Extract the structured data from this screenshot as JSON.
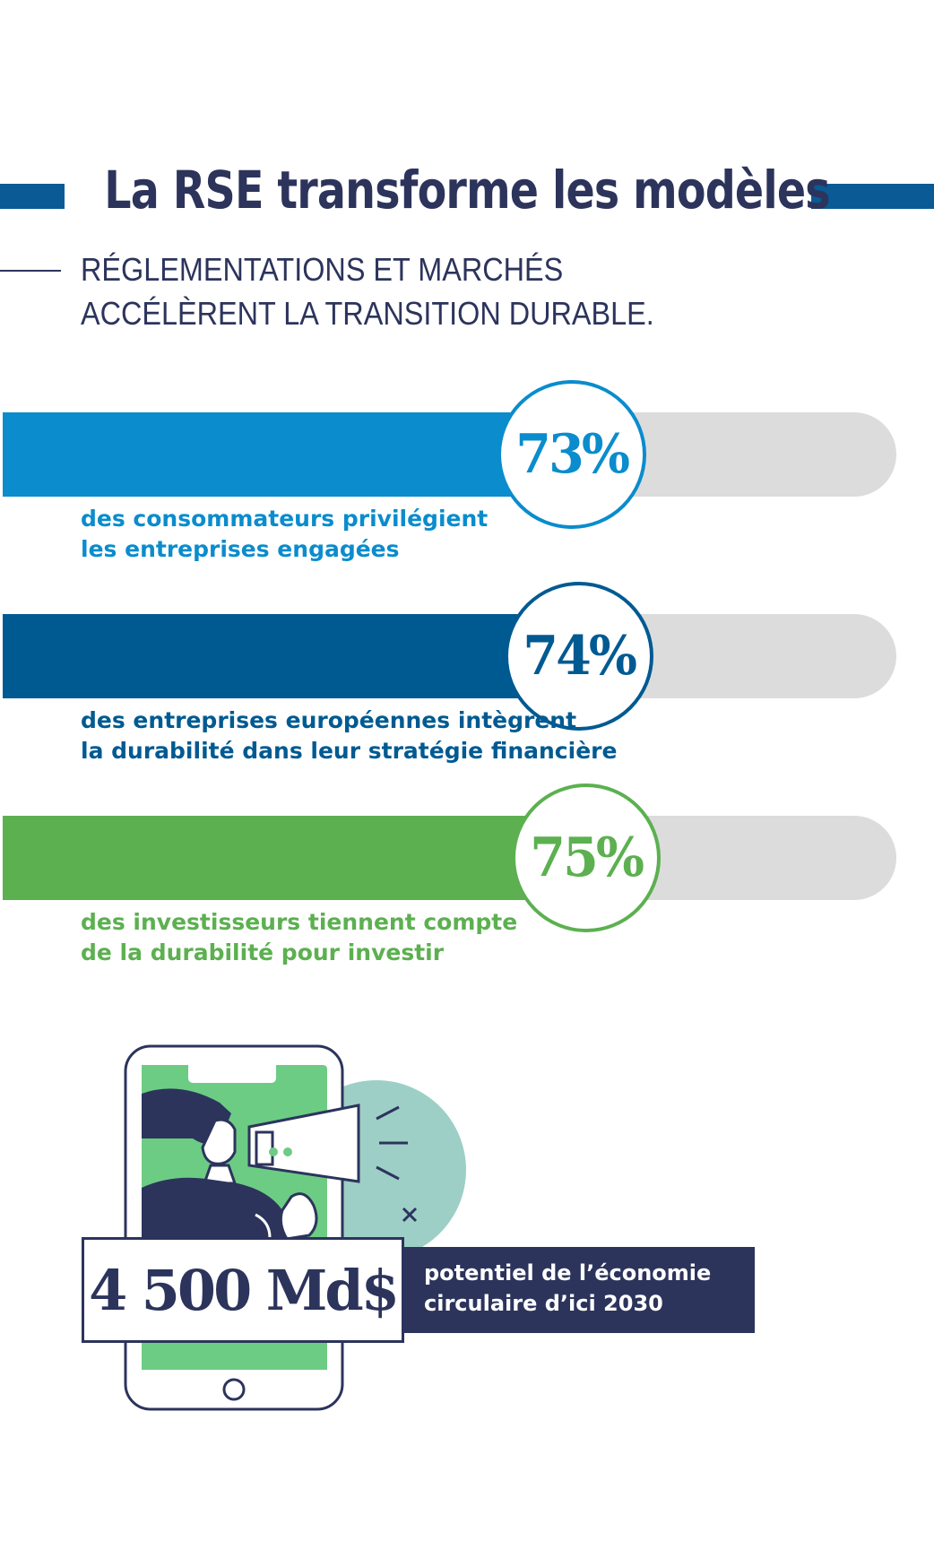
{
  "header": {
    "title": "La RSE transforme les modèles",
    "subtitle_line1": "RÉGLEMENTATIONS ET MARCHÉS",
    "subtitle_line2": "ACCÉLÈRENT LA TRANSITION DURABLE."
  },
  "colors": {
    "navy": "#2c345c",
    "light_blue": "#0a8ccd",
    "dark_blue": "#005a92",
    "green": "#5cb050",
    "track": "#dcdcdc",
    "phone_screen": "#6ccc84",
    "blob": "#9dcfc7"
  },
  "chart_data": {
    "type": "bar",
    "orientation": "horizontal",
    "unit": "%",
    "xlim": [
      0,
      100
    ],
    "series": [
      {
        "label": "73%",
        "value": 73,
        "desc_line1": "des consommateurs privilégient",
        "desc_line2": "les entreprises engagées",
        "color": "#0a8ccd"
      },
      {
        "label": "74%",
        "value": 74,
        "desc_line1": "des entreprises européennes intègrent",
        "desc_line2": "la durabilité dans leur stratégie financière",
        "color": "#005a92"
      },
      {
        "label": "75%",
        "value": 75,
        "desc_line1": "des investisseurs tiennent compte",
        "desc_line2": "de la durabilité pour investir",
        "color": "#5cb050"
      }
    ]
  },
  "highlight": {
    "value": "4 500 Md$",
    "text_line1": "potentiel de l’économie",
    "text_line2": "circulaire d’ici 2030"
  },
  "illustration": {
    "icons": [
      "smartphone-icon",
      "woman-with-megaphone-icon",
      "cross-mark-icon"
    ]
  }
}
